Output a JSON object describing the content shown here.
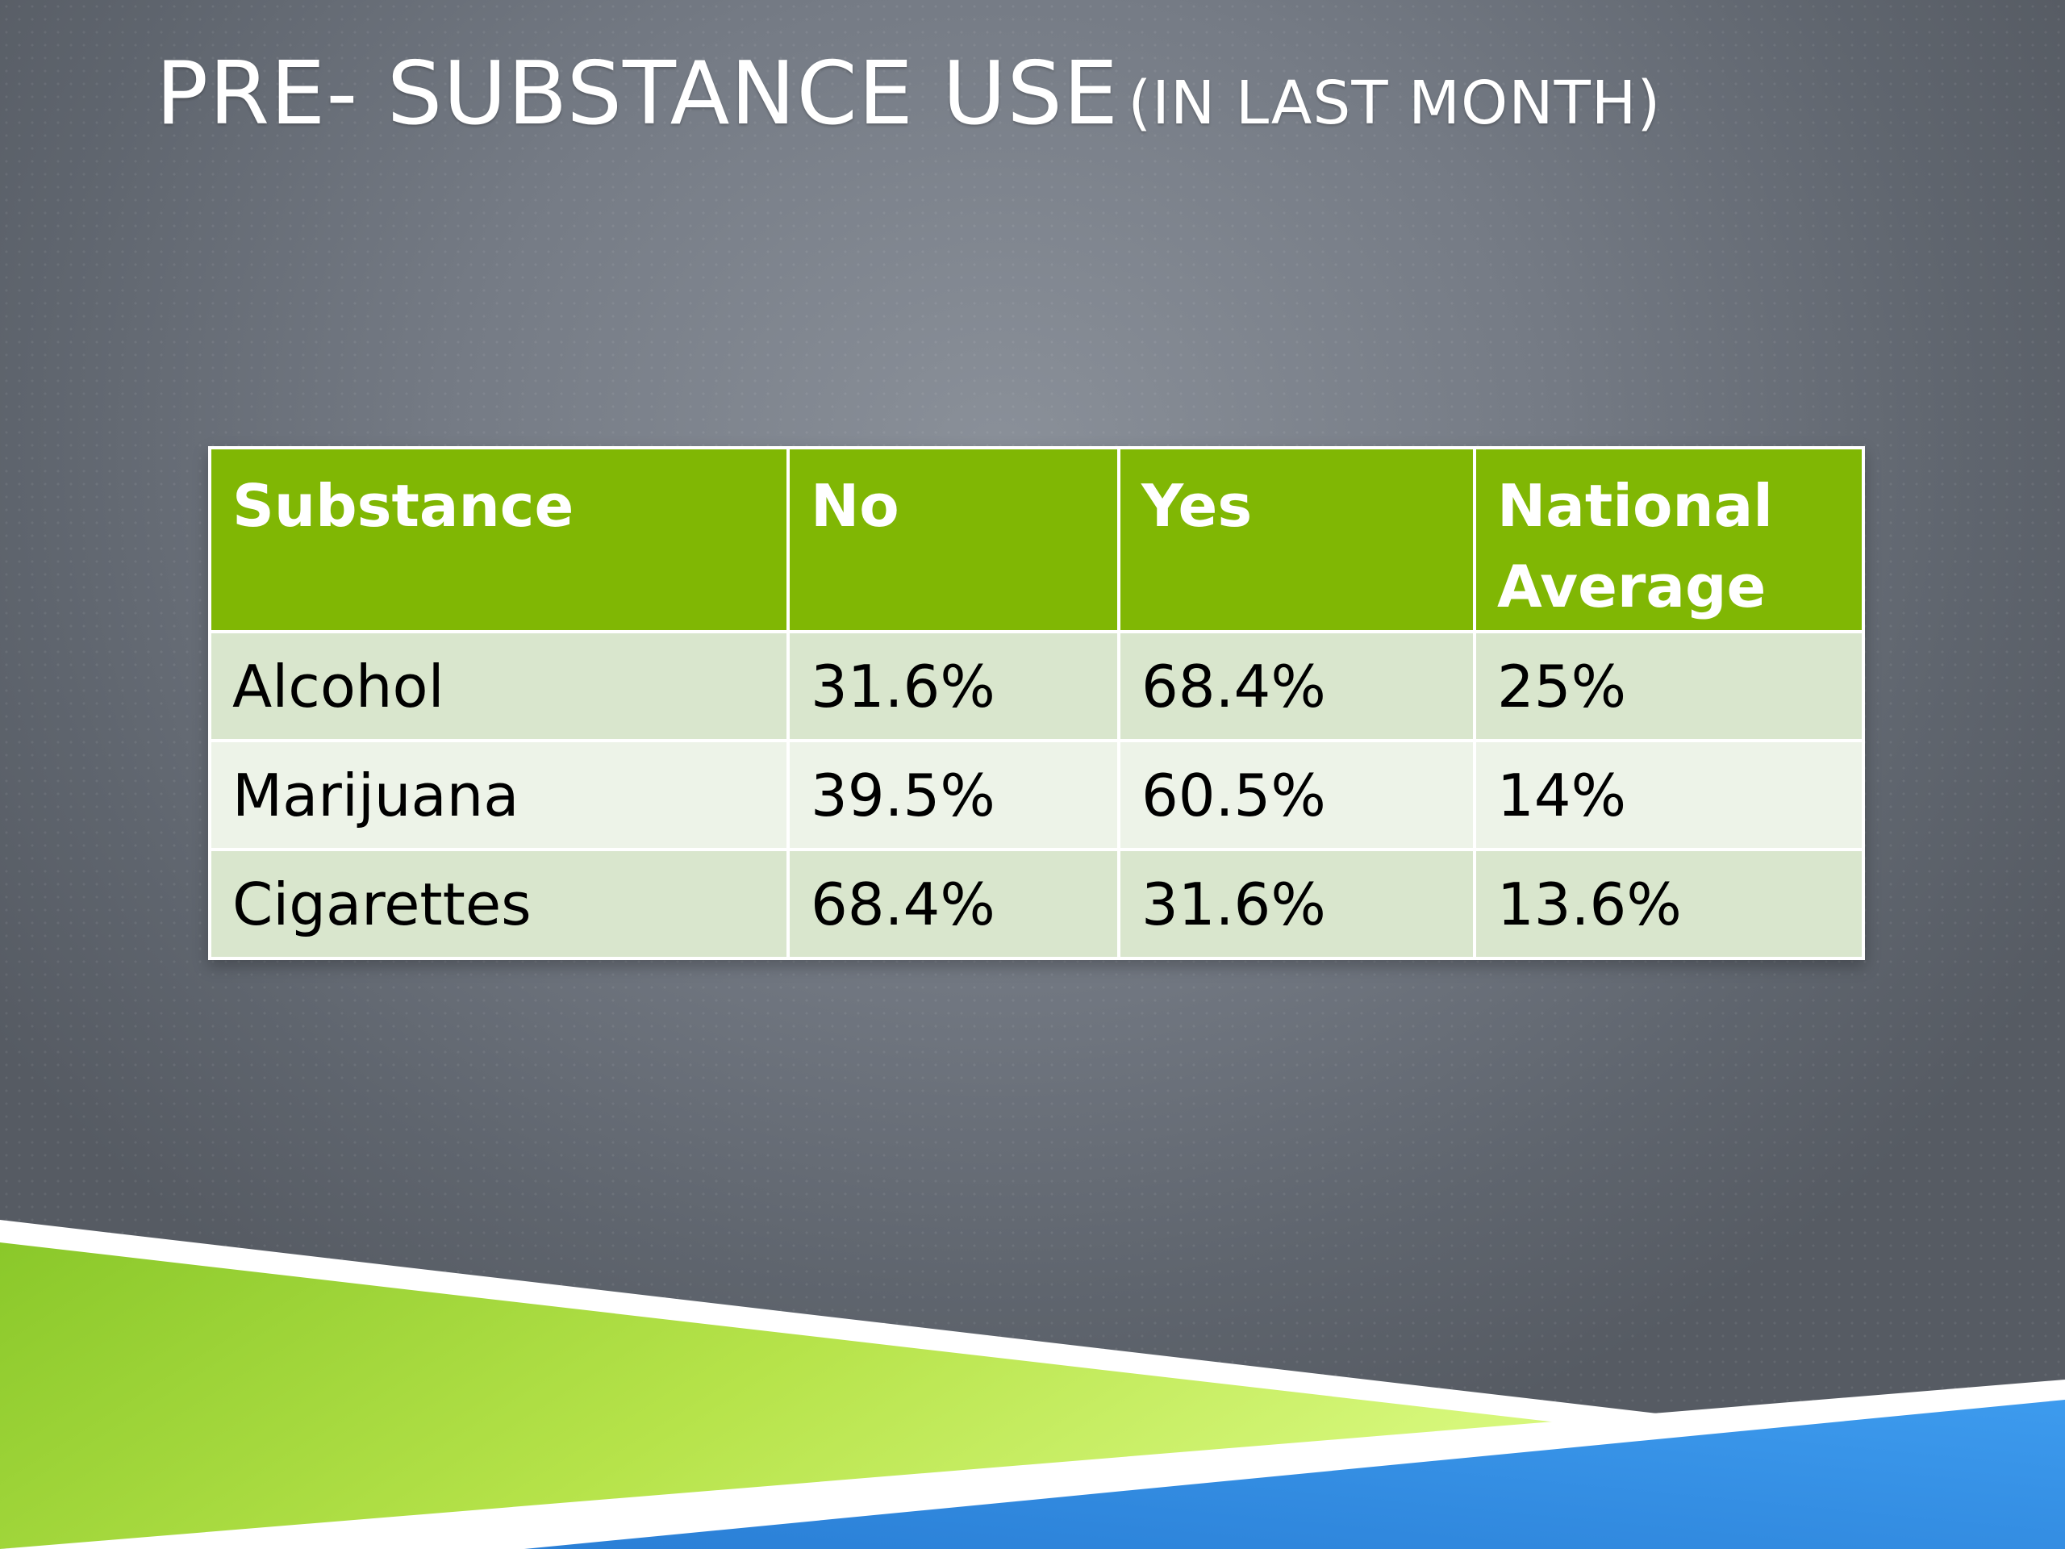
{
  "slide": {
    "title_main": "PRE- SUBSTANCE USE",
    "title_sub": "(IN LAST MONTH)"
  },
  "table": {
    "headers": [
      "Substance",
      "No",
      "Yes",
      "National Average"
    ],
    "rows": [
      [
        "Alcohol",
        "31.6%",
        "68.4%",
        "25%"
      ],
      [
        "Marijuana",
        "39.5%",
        "60.5%",
        "14%"
      ],
      [
        "Cigarettes",
        "68.4%",
        "31.6%",
        "13.6%"
      ]
    ]
  },
  "colors": {
    "header_green": "#80b704",
    "row_light_green": "#d9e6cd",
    "row_lighter_green": "#edf3e8",
    "accent_lime": "#c6ef3a",
    "accent_blue": "#2b8fe0",
    "background_gray": "#757b85"
  }
}
